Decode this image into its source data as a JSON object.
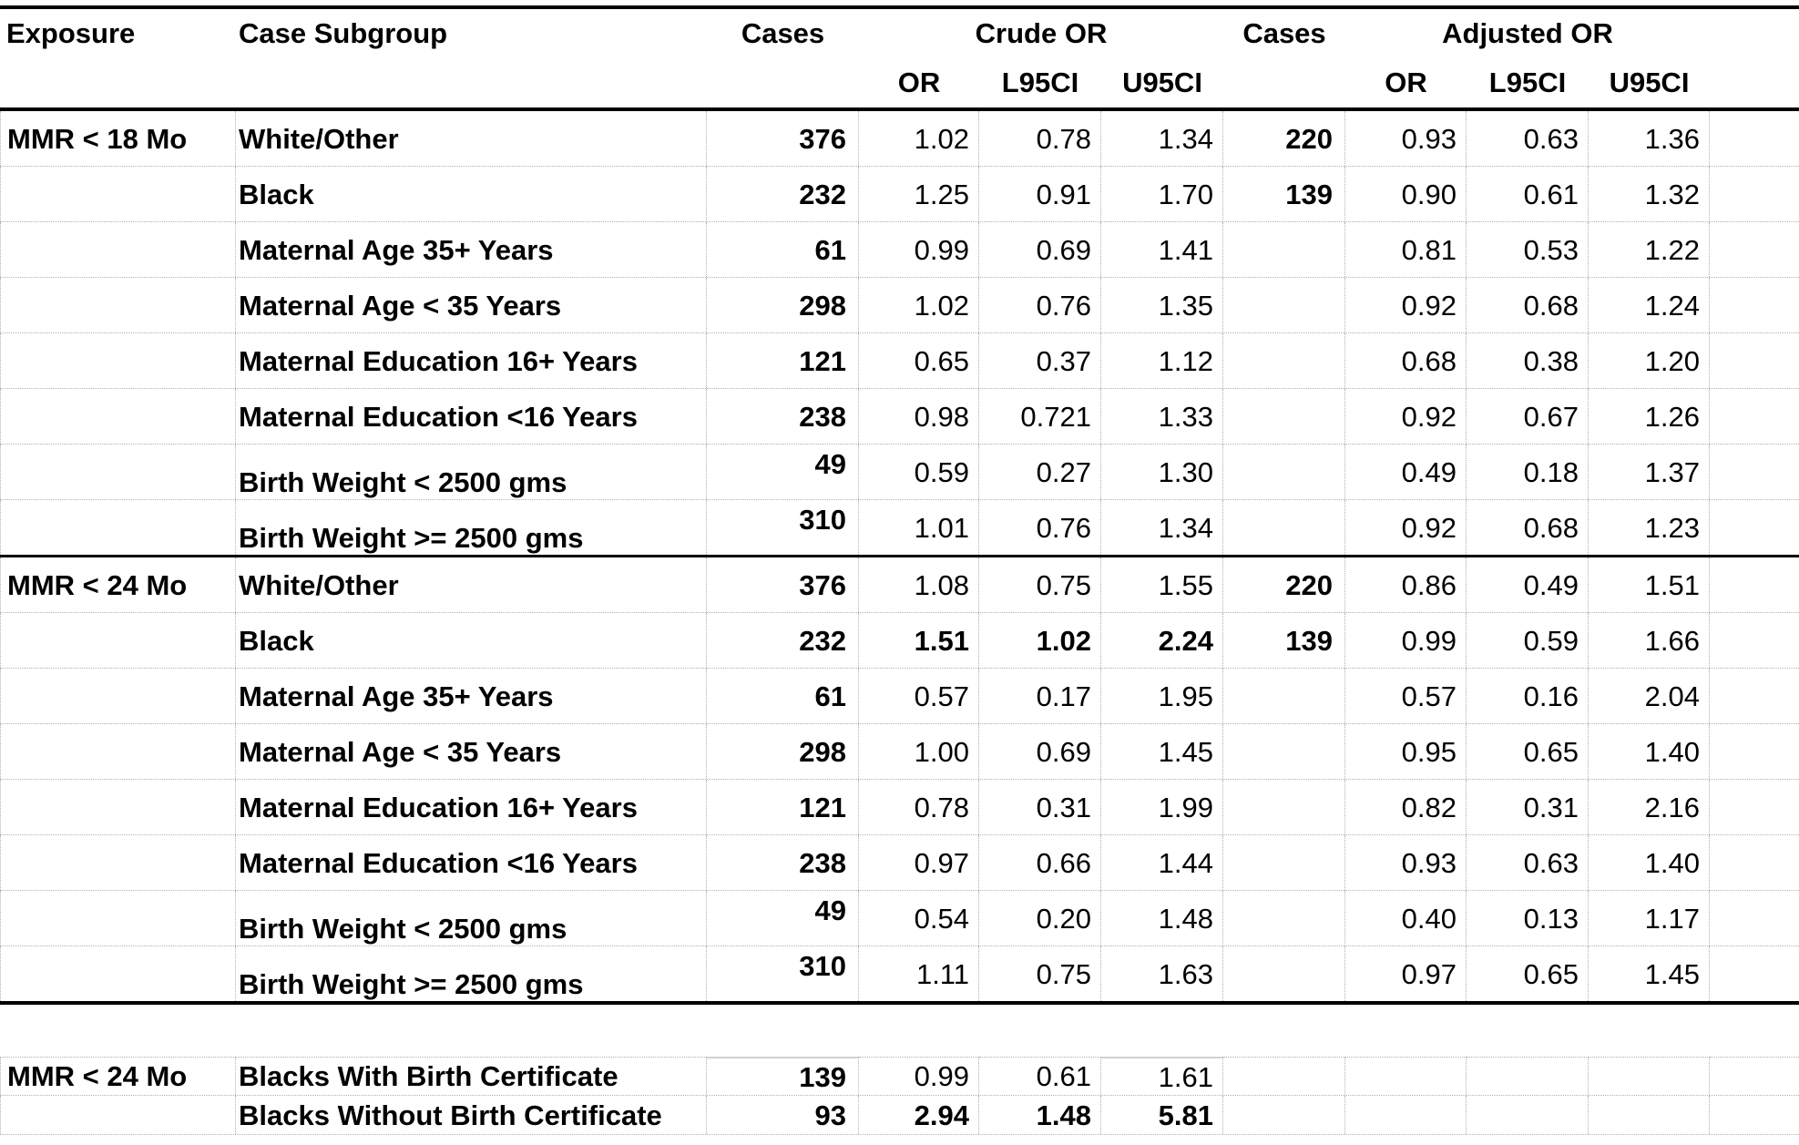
{
  "colors": {
    "rule": "#000000",
    "grid_dotted": "#b0b0b0",
    "grid_solid_segment": "#d2d2d2",
    "background": "#ffffff",
    "text": "#000000"
  },
  "headers": {
    "exposure": "Exposure",
    "case_subgroup": "Case Subgroup",
    "cases_crude": "Cases",
    "crude_or": "Crude OR",
    "cases_adjusted": "Cases",
    "adjusted_or": "Adjusted OR",
    "or": "OR",
    "l95ci": "L95CI",
    "u95ci": "U95CI"
  },
  "sections": [
    {
      "exposure": "MMR < 18 Mo",
      "placement": "main",
      "rows": [
        {
          "subgroup": "White/Other",
          "cases": "376",
          "crude": [
            "1.02",
            "0.78",
            "1.34"
          ],
          "cases2": "220",
          "adjusted": [
            "0.93",
            "0.63",
            "1.36"
          ],
          "bold_crude": false
        },
        {
          "subgroup": "Black",
          "cases": "232",
          "crude": [
            "1.25",
            "0.91",
            "1.70"
          ],
          "cases2": "139",
          "adjusted": [
            "0.90",
            "0.61",
            "1.32"
          ],
          "bold_crude": false
        },
        {
          "subgroup": "Maternal Age 35+ Years",
          "cases": "61",
          "crude": [
            "0.99",
            "0.69",
            "1.41"
          ],
          "cases2": "",
          "adjusted": [
            "0.81",
            "0.53",
            "1.22"
          ],
          "bold_crude": false
        },
        {
          "subgroup": "Maternal Age < 35 Years",
          "cases": "298",
          "crude": [
            "1.02",
            "0.76",
            "1.35"
          ],
          "cases2": "",
          "adjusted": [
            "0.92",
            "0.68",
            "1.24"
          ],
          "bold_crude": false
        },
        {
          "subgroup": "Maternal Education 16+ Years",
          "cases": "121",
          "crude": [
            "0.65",
            "0.37",
            "1.12"
          ],
          "cases2": "",
          "adjusted": [
            "0.68",
            "0.38",
            "1.20"
          ],
          "bold_crude": false
        },
        {
          "subgroup": "Maternal Education <16 Years",
          "cases": "238",
          "crude": [
            "0.98",
            "0.721",
            "1.33"
          ],
          "cases2": "",
          "adjusted": [
            "0.92",
            "0.67",
            "1.26"
          ],
          "bold_crude": false
        },
        {
          "subgroup": "Birth Weight < 2500 gms",
          "cases": "49",
          "crude": [
            "0.59",
            "0.27",
            "1.30"
          ],
          "cases2": "",
          "adjusted": [
            "0.49",
            "0.18",
            "1.37"
          ],
          "bold_crude": false
        },
        {
          "subgroup": "Birth Weight >= 2500 gms",
          "cases": "310",
          "crude": [
            "1.01",
            "0.76",
            "1.34"
          ],
          "cases2": "",
          "adjusted": [
            "0.92",
            "0.68",
            "1.23"
          ],
          "bold_crude": false
        }
      ]
    },
    {
      "exposure": "MMR < 24 Mo",
      "placement": "main",
      "rows": [
        {
          "subgroup": "White/Other",
          "cases": "376",
          "crude": [
            "1.08",
            "0.75",
            "1.55"
          ],
          "cases2": "220",
          "adjusted": [
            "0.86",
            "0.49",
            "1.51"
          ],
          "bold_crude": false
        },
        {
          "subgroup": "Black",
          "cases": "232",
          "crude": [
            "1.51",
            "1.02",
            "2.24"
          ],
          "cases2": "139",
          "adjusted": [
            "0.99",
            "0.59",
            "1.66"
          ],
          "bold_crude": true
        },
        {
          "subgroup": "Maternal Age 35+ Years",
          "cases": "61",
          "crude": [
            "0.57",
            "0.17",
            "1.95"
          ],
          "cases2": "",
          "adjusted": [
            "0.57",
            "0.16",
            "2.04"
          ],
          "bold_crude": false
        },
        {
          "subgroup": "Maternal Age < 35 Years",
          "cases": "298",
          "crude": [
            "1.00",
            "0.69",
            "1.45"
          ],
          "cases2": "",
          "adjusted": [
            "0.95",
            "0.65",
            "1.40"
          ],
          "bold_crude": false
        },
        {
          "subgroup": "Maternal Education 16+ Years",
          "cases": "121",
          "crude": [
            "0.78",
            "0.31",
            "1.99"
          ],
          "cases2": "",
          "adjusted": [
            "0.82",
            "0.31",
            "2.16"
          ],
          "bold_crude": false
        },
        {
          "subgroup": "Maternal Education <16 Years",
          "cases": "238",
          "crude": [
            "0.97",
            "0.66",
            "1.44"
          ],
          "cases2": "",
          "adjusted": [
            "0.93",
            "0.63",
            "1.40"
          ],
          "bold_crude": false
        },
        {
          "subgroup": "Birth Weight < 2500 gms",
          "cases": "49",
          "crude": [
            "0.54",
            "0.20",
            "1.48"
          ],
          "cases2": "",
          "adjusted": [
            "0.40",
            "0.13",
            "1.17"
          ],
          "bold_crude": false
        },
        {
          "subgroup": "Birth Weight >= 2500 gms",
          "cases": "310",
          "crude": [
            "1.11",
            "0.75",
            "1.63"
          ],
          "cases2": "",
          "adjusted": [
            "0.97",
            "0.65",
            "1.45"
          ],
          "bold_crude": false
        }
      ]
    },
    {
      "exposure": "MMR < 24 Mo",
      "placement": "bottom",
      "rows": [
        {
          "subgroup": "Blacks With Birth Certificate",
          "cases": "139",
          "crude": [
            "0.99",
            "0.61",
            "1.61"
          ],
          "cases2": "",
          "adjusted": [
            "",
            "",
            ""
          ],
          "bold_crude": false
        },
        {
          "subgroup": "Blacks Without Birth Certificate",
          "cases": "93",
          "crude": [
            "2.94",
            "1.48",
            "5.81"
          ],
          "cases2": "",
          "adjusted": [
            "",
            "",
            ""
          ],
          "bold_crude": true
        }
      ]
    }
  ]
}
